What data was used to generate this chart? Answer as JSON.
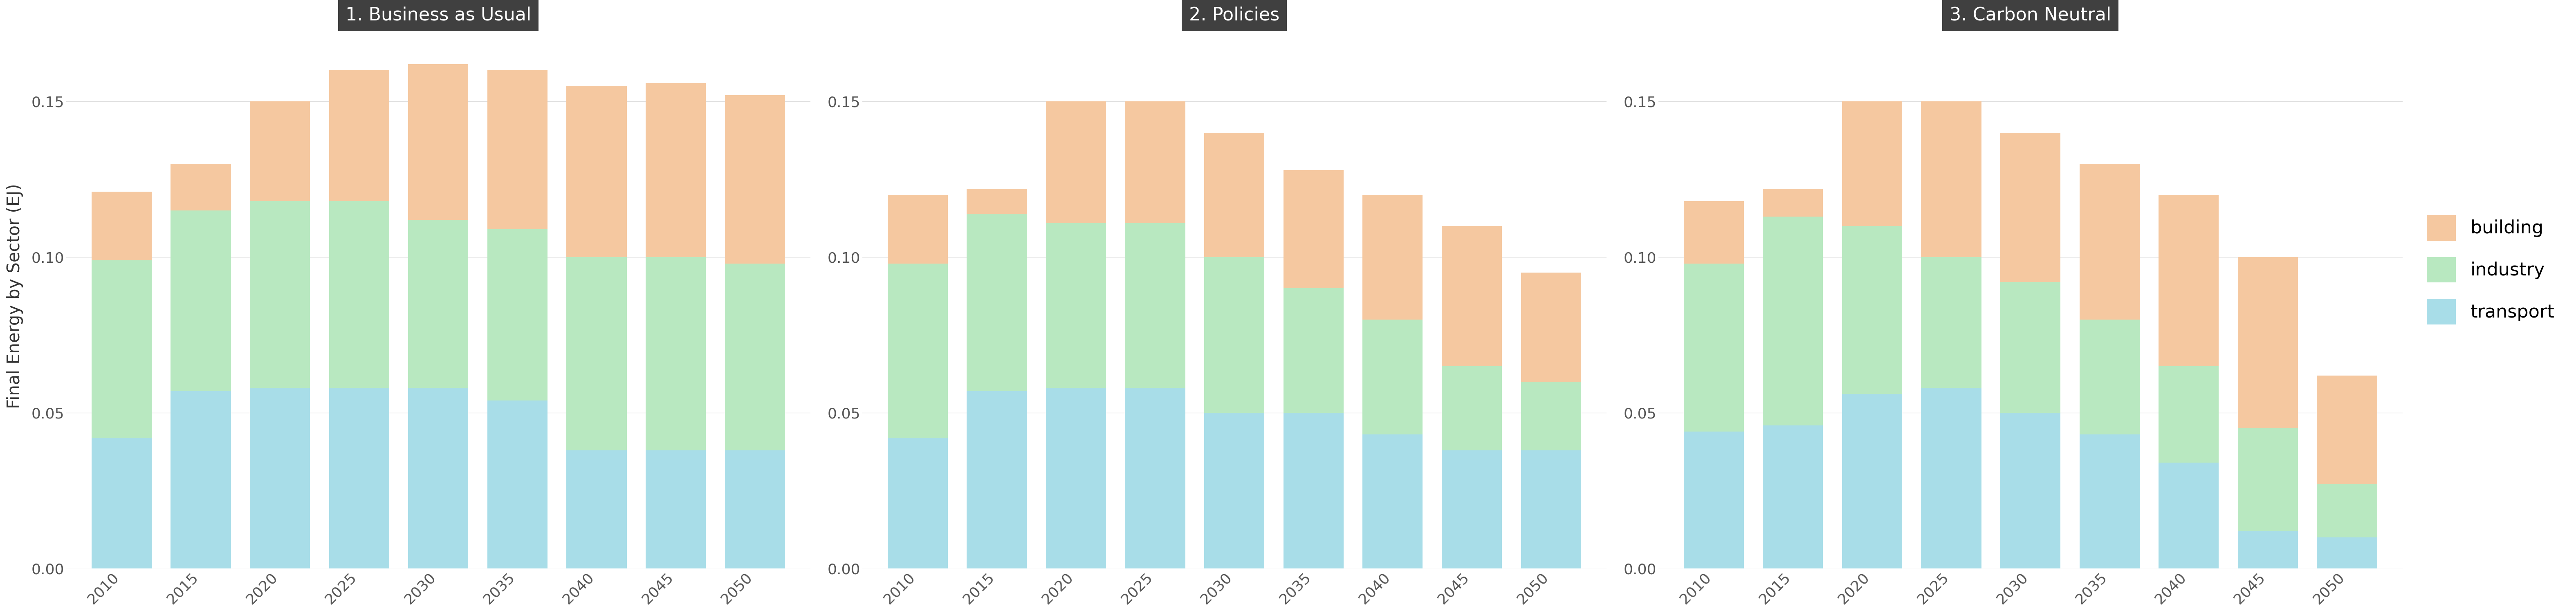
{
  "scenarios": [
    "1. Business as Usual",
    "2. Policies",
    "3. Carbon Neutral"
  ],
  "years": [
    2010,
    2015,
    2020,
    2025,
    2030,
    2035,
    2040,
    2045,
    2050
  ],
  "transport": {
    "bau": [
      0.042,
      0.056,
      0.058,
      0.058,
      0.058,
      0.055,
      0.038,
      0.038,
      0.038
    ],
    "pol": [
      0.042,
      0.056,
      0.058,
      0.058,
      0.05,
      0.05,
      0.043,
      0.038,
      0.038
    ],
    "cn": [
      0.044,
      0.046,
      0.056,
      0.056,
      0.05,
      0.043,
      0.034,
      0.012,
      0.01
    ]
  },
  "industry": {
    "bau": [
      0.056,
      0.06,
      0.06,
      0.06,
      0.06,
      0.06,
      0.055,
      0.056,
      0.056
    ],
    "pol": [
      0.05,
      0.058,
      0.052,
      0.053,
      0.052,
      0.044,
      0.04,
      0.034,
      0.028
    ],
    "cn": [
      0.05,
      0.068,
      0.054,
      0.055,
      0.052,
      0.039,
      0.03,
      0.02,
      0.016
    ]
  },
  "building": {
    "bau": [
      0.022,
      0.014,
      0.032,
      0.038,
      0.044,
      0.046,
      0.062,
      0.062,
      0.058
    ],
    "pol": [
      0.028,
      0.008,
      0.04,
      0.042,
      0.038,
      0.026,
      0.028,
      0.028,
      0.028
    ],
    "cn": [
      0.026,
      0.008,
      0.04,
      0.038,
      0.038,
      0.036,
      0.056,
      0.048,
      0.036
    ]
  },
  "transport_color": "#a8dde8",
  "industry_color": "#b8e8c0",
  "building_color": "#f5c8a0",
  "title_bg_color": "#404040",
  "title_text_color": "#ffffff",
  "ylabel": "Final Energy by Sector (EJ)",
  "ylim": [
    0,
    0.175
  ],
  "yticks": [
    0.0,
    0.05,
    0.1,
    0.15
  ],
  "background_color": "#ffffff",
  "panel_bg_color": "#ffffff",
  "grid_color": "#dddddd"
}
